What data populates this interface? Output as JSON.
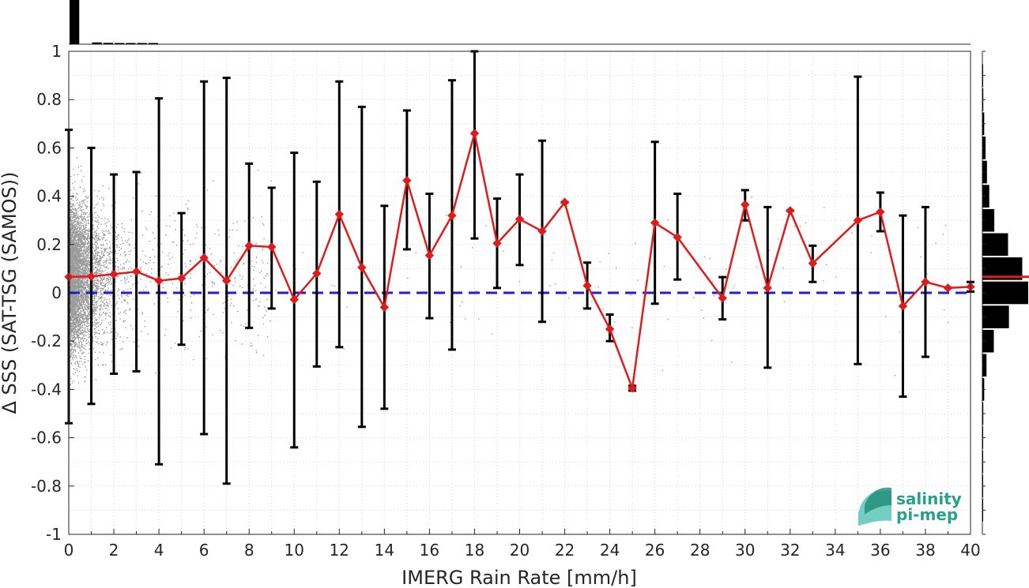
{
  "chart_data": {
    "type": "line",
    "title": "",
    "xlabel": "IMERG Rain Rate [mm/h]",
    "ylabel": "Δ SSS (SAT-TSG (SAMOS))",
    "xlim": [
      0,
      40
    ],
    "ylim": [
      -1,
      1
    ],
    "xticks": [
      0,
      2,
      4,
      6,
      8,
      10,
      12,
      14,
      16,
      18,
      20,
      22,
      24,
      26,
      28,
      30,
      32,
      34,
      36,
      38,
      40
    ],
    "yticks": [
      -1,
      -0.8,
      -0.6,
      -0.4,
      -0.2,
      0,
      0.2,
      0.4,
      0.6,
      0.8,
      1
    ],
    "ytick_labels": [
      "-1",
      "-0.8",
      "-0.6",
      "-0.4",
      "-0.2",
      "0",
      "0.2",
      "0.4",
      "0.6",
      "0.8",
      "1"
    ],
    "grid": true,
    "reference_line": {
      "y": 0,
      "color": "#1f1fd6",
      "style": "dashed"
    },
    "series": [
      {
        "style": "binned-mean-with-errorbars",
        "color": "#e01b1b",
        "errorbar_color": "#000000",
        "x": [
          0,
          1,
          2,
          3,
          4,
          5,
          6,
          7,
          8,
          9,
          10,
          11,
          12,
          13,
          14,
          15,
          16,
          17,
          18,
          19,
          20,
          21,
          22,
          23,
          24,
          25,
          26,
          27,
          29,
          30,
          31,
          32,
          33,
          35,
          36,
          37,
          38,
          39,
          40
        ],
        "y": [
          0.066,
          0.068,
          0.077,
          0.088,
          0.05,
          0.06,
          0.145,
          0.05,
          0.195,
          0.19,
          -0.028,
          0.08,
          0.325,
          0.105,
          -0.06,
          0.465,
          0.155,
          0.32,
          0.66,
          0.205,
          0.305,
          0.255,
          0.375,
          0.03,
          -0.15,
          -0.395,
          0.29,
          0.23,
          -0.022,
          0.365,
          0.02,
          0.34,
          0.122,
          0.3,
          0.335,
          -0.055,
          0.045,
          0.02,
          0.025
        ],
        "lower": [
          -0.54,
          -0.46,
          -0.335,
          -0.325,
          -0.71,
          -0.215,
          -0.585,
          -0.79,
          -0.145,
          -0.065,
          -0.64,
          -0.305,
          -0.225,
          -0.555,
          -0.48,
          0.18,
          -0.105,
          -0.235,
          0.225,
          0.02,
          0.115,
          -0.12,
          0.375,
          -0.065,
          -0.2,
          -0.405,
          -0.045,
          0.055,
          -0.11,
          0.3,
          -0.31,
          0.34,
          0.045,
          -0.295,
          0.255,
          -0.43,
          -0.265,
          0.02,
          0.005
        ],
        "upper": [
          0.675,
          0.6,
          0.49,
          0.5,
          0.805,
          0.33,
          0.875,
          0.89,
          0.535,
          0.435,
          0.58,
          0.46,
          0.875,
          0.77,
          0.36,
          0.755,
          0.41,
          0.88,
          1.0,
          0.39,
          0.49,
          0.63,
          0.375,
          0.125,
          -0.09,
          -0.385,
          0.625,
          0.41,
          0.065,
          0.425,
          0.355,
          0.34,
          0.195,
          0.895,
          0.415,
          0.32,
          0.355,
          0.02,
          0.045
        ]
      }
    ],
    "scatter": {
      "color": "#7a7a7a",
      "description": "individual match-up points, densest near 0 mm/h"
    },
    "histogram_right": {
      "bin_centers": [
        0.9,
        0.8,
        0.7,
        0.6,
        0.5,
        0.4,
        0.3,
        0.2,
        0.1,
        0.0,
        -0.1,
        -0.2,
        -0.3,
        -0.4,
        -0.5,
        -0.6,
        -0.7,
        -0.8,
        -0.9
      ],
      "relative_counts": [
        0.01,
        0.02,
        0.04,
        0.07,
        0.1,
        0.15,
        0.26,
        0.56,
        0.87,
        1.0,
        0.58,
        0.25,
        0.09,
        0.04,
        0.02,
        0.01,
        0.01,
        0.005,
        0.005
      ],
      "mean_marker": 0.066,
      "mean_color": "#e01b1b"
    },
    "histogram_top": {
      "bin_edges": [
        0,
        0.5,
        1,
        1.5,
        2,
        2.5,
        3,
        3.5,
        4
      ],
      "relative_counts": [
        1.0,
        0.0,
        0.04,
        0.03,
        0.02,
        0.015,
        0.01,
        0.008
      ]
    }
  },
  "logo": {
    "line1": "salinity",
    "line2": "pi-mep",
    "color": "#27a08c"
  }
}
